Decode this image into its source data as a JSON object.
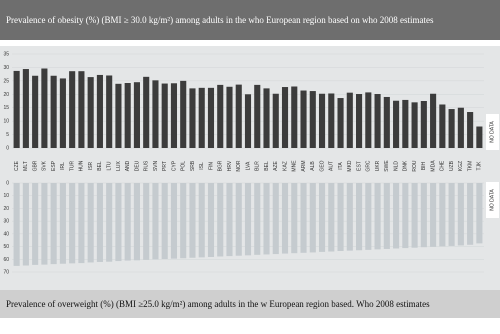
{
  "chart_data": [
    {
      "type": "bar",
      "title": "Prevalence of obesity (%) (BMI ≥ 30.0 kg/m²) among adults in the who European region based on who 2008 estimates",
      "categories": [
        "CZE",
        "MLT",
        "GBR",
        "SVK",
        "ESP",
        "IRL",
        "TUR",
        "HUN",
        "ISR",
        "BEL",
        "LTU",
        "LUX",
        "AND",
        "DEU",
        "RUS",
        "SVN",
        "PRT",
        "CYP",
        "POL",
        "SRB",
        "ISL",
        "FIN",
        "BGR",
        "HRV",
        "NOR",
        "LVA",
        "BLR",
        "BEL",
        "AZE",
        "KAZ",
        "MNE",
        "ARM",
        "ALB",
        "GEO",
        "AUT",
        "ITA",
        "MKD",
        "EST",
        "GRC",
        "UKR",
        "SWE",
        "NLD",
        "DNK",
        "ROU",
        "BIH",
        "MDA",
        "CHE",
        "UZB",
        "KGZ",
        "TKM",
        "TJK"
      ],
      "values": [
        28.7,
        29.4,
        26.9,
        29.6,
        26.9,
        25.9,
        28.6,
        28.6,
        26.4,
        27.2,
        27.0,
        23.9,
        24.2,
        24.5,
        26.5,
        25.2,
        24.0,
        24.1,
        25.0,
        22.2,
        22.4,
        22.4,
        23.5,
        22.8,
        23.6,
        20.0,
        23.5,
        22.2,
        20.2,
        22.7,
        22.9,
        21.4,
        21.2,
        20.2,
        20.3,
        18.6,
        20.6,
        20.1,
        20.7,
        20.1,
        19.0,
        17.6,
        17.9,
        17.0,
        17.5,
        20.2,
        16.2,
        14.5,
        15.0,
        13.4,
        8.0
      ],
      "color": "#3c3c3c",
      "ylim": [
        0,
        35
      ],
      "yticks": [
        0,
        5,
        10,
        15,
        20,
        25,
        30,
        35
      ],
      "grid": true,
      "annotation": "NO DATA"
    },
    {
      "type": "bar",
      "title": "Prevalence of overweight (%) (BMI ≥25.0 kg/m²) among adults in the w European region based. Who 2008 estimates",
      "values": [
        65.2,
        64.9,
        64.4,
        64.2,
        63.8,
        63.5,
        63.2,
        63.0,
        62.5,
        62.1,
        61.9,
        61.4,
        61.0,
        60.8,
        60.5,
        60.2,
        59.8,
        59.5,
        59.2,
        58.8,
        58.5,
        58.2,
        57.8,
        57.5,
        57.2,
        56.9,
        56.5,
        56.2,
        55.9,
        55.5,
        55.2,
        54.9,
        54.6,
        54.2,
        53.9,
        53.5,
        53.2,
        52.9,
        52.6,
        52.2,
        51.9,
        51.5,
        51.2,
        50.9,
        50.5,
        50.2,
        49.8,
        49.5,
        49.1,
        48.6,
        47.5
      ],
      "color": "#c5cbcf",
      "ylim": [
        0,
        70
      ],
      "yticks": [
        0,
        10,
        20,
        30,
        40,
        50,
        60,
        70
      ],
      "grid": true,
      "annotation": "NO DATA"
    }
  ]
}
